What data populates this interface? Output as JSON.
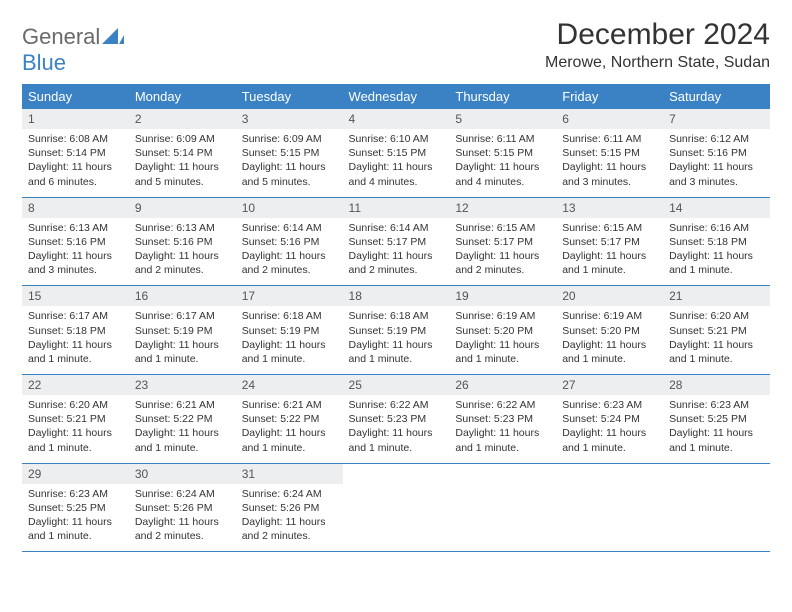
{
  "brand": {
    "part1": "General",
    "part2": "Blue"
  },
  "header": {
    "month_title": "December 2024",
    "location": "Merowe, Northern State, Sudan"
  },
  "colors": {
    "accent": "#3b82c4",
    "header_bg": "#3b82c4",
    "header_text": "#ffffff",
    "daynum_bg": "#eceeef",
    "text": "#333333",
    "logo_gray": "#6a6a6a"
  },
  "weekdays": [
    "Sunday",
    "Monday",
    "Tuesday",
    "Wednesday",
    "Thursday",
    "Friday",
    "Saturday"
  ],
  "days": [
    {
      "n": "1",
      "sunrise": "Sunrise: 6:08 AM",
      "sunset": "Sunset: 5:14 PM",
      "day1": "Daylight: 11 hours",
      "day2": "and 6 minutes."
    },
    {
      "n": "2",
      "sunrise": "Sunrise: 6:09 AM",
      "sunset": "Sunset: 5:14 PM",
      "day1": "Daylight: 11 hours",
      "day2": "and 5 minutes."
    },
    {
      "n": "3",
      "sunrise": "Sunrise: 6:09 AM",
      "sunset": "Sunset: 5:15 PM",
      "day1": "Daylight: 11 hours",
      "day2": "and 5 minutes."
    },
    {
      "n": "4",
      "sunrise": "Sunrise: 6:10 AM",
      "sunset": "Sunset: 5:15 PM",
      "day1": "Daylight: 11 hours",
      "day2": "and 4 minutes."
    },
    {
      "n": "5",
      "sunrise": "Sunrise: 6:11 AM",
      "sunset": "Sunset: 5:15 PM",
      "day1": "Daylight: 11 hours",
      "day2": "and 4 minutes."
    },
    {
      "n": "6",
      "sunrise": "Sunrise: 6:11 AM",
      "sunset": "Sunset: 5:15 PM",
      "day1": "Daylight: 11 hours",
      "day2": "and 3 minutes."
    },
    {
      "n": "7",
      "sunrise": "Sunrise: 6:12 AM",
      "sunset": "Sunset: 5:16 PM",
      "day1": "Daylight: 11 hours",
      "day2": "and 3 minutes."
    },
    {
      "n": "8",
      "sunrise": "Sunrise: 6:13 AM",
      "sunset": "Sunset: 5:16 PM",
      "day1": "Daylight: 11 hours",
      "day2": "and 3 minutes."
    },
    {
      "n": "9",
      "sunrise": "Sunrise: 6:13 AM",
      "sunset": "Sunset: 5:16 PM",
      "day1": "Daylight: 11 hours",
      "day2": "and 2 minutes."
    },
    {
      "n": "10",
      "sunrise": "Sunrise: 6:14 AM",
      "sunset": "Sunset: 5:16 PM",
      "day1": "Daylight: 11 hours",
      "day2": "and 2 minutes."
    },
    {
      "n": "11",
      "sunrise": "Sunrise: 6:14 AM",
      "sunset": "Sunset: 5:17 PM",
      "day1": "Daylight: 11 hours",
      "day2": "and 2 minutes."
    },
    {
      "n": "12",
      "sunrise": "Sunrise: 6:15 AM",
      "sunset": "Sunset: 5:17 PM",
      "day1": "Daylight: 11 hours",
      "day2": "and 2 minutes."
    },
    {
      "n": "13",
      "sunrise": "Sunrise: 6:15 AM",
      "sunset": "Sunset: 5:17 PM",
      "day1": "Daylight: 11 hours",
      "day2": "and 1 minute."
    },
    {
      "n": "14",
      "sunrise": "Sunrise: 6:16 AM",
      "sunset": "Sunset: 5:18 PM",
      "day1": "Daylight: 11 hours",
      "day2": "and 1 minute."
    },
    {
      "n": "15",
      "sunrise": "Sunrise: 6:17 AM",
      "sunset": "Sunset: 5:18 PM",
      "day1": "Daylight: 11 hours",
      "day2": "and 1 minute."
    },
    {
      "n": "16",
      "sunrise": "Sunrise: 6:17 AM",
      "sunset": "Sunset: 5:19 PM",
      "day1": "Daylight: 11 hours",
      "day2": "and 1 minute."
    },
    {
      "n": "17",
      "sunrise": "Sunrise: 6:18 AM",
      "sunset": "Sunset: 5:19 PM",
      "day1": "Daylight: 11 hours",
      "day2": "and 1 minute."
    },
    {
      "n": "18",
      "sunrise": "Sunrise: 6:18 AM",
      "sunset": "Sunset: 5:19 PM",
      "day1": "Daylight: 11 hours",
      "day2": "and 1 minute."
    },
    {
      "n": "19",
      "sunrise": "Sunrise: 6:19 AM",
      "sunset": "Sunset: 5:20 PM",
      "day1": "Daylight: 11 hours",
      "day2": "and 1 minute."
    },
    {
      "n": "20",
      "sunrise": "Sunrise: 6:19 AM",
      "sunset": "Sunset: 5:20 PM",
      "day1": "Daylight: 11 hours",
      "day2": "and 1 minute."
    },
    {
      "n": "21",
      "sunrise": "Sunrise: 6:20 AM",
      "sunset": "Sunset: 5:21 PM",
      "day1": "Daylight: 11 hours",
      "day2": "and 1 minute."
    },
    {
      "n": "22",
      "sunrise": "Sunrise: 6:20 AM",
      "sunset": "Sunset: 5:21 PM",
      "day1": "Daylight: 11 hours",
      "day2": "and 1 minute."
    },
    {
      "n": "23",
      "sunrise": "Sunrise: 6:21 AM",
      "sunset": "Sunset: 5:22 PM",
      "day1": "Daylight: 11 hours",
      "day2": "and 1 minute."
    },
    {
      "n": "24",
      "sunrise": "Sunrise: 6:21 AM",
      "sunset": "Sunset: 5:22 PM",
      "day1": "Daylight: 11 hours",
      "day2": "and 1 minute."
    },
    {
      "n": "25",
      "sunrise": "Sunrise: 6:22 AM",
      "sunset": "Sunset: 5:23 PM",
      "day1": "Daylight: 11 hours",
      "day2": "and 1 minute."
    },
    {
      "n": "26",
      "sunrise": "Sunrise: 6:22 AM",
      "sunset": "Sunset: 5:23 PM",
      "day1": "Daylight: 11 hours",
      "day2": "and 1 minute."
    },
    {
      "n": "27",
      "sunrise": "Sunrise: 6:23 AM",
      "sunset": "Sunset: 5:24 PM",
      "day1": "Daylight: 11 hours",
      "day2": "and 1 minute."
    },
    {
      "n": "28",
      "sunrise": "Sunrise: 6:23 AM",
      "sunset": "Sunset: 5:25 PM",
      "day1": "Daylight: 11 hours",
      "day2": "and 1 minute."
    },
    {
      "n": "29",
      "sunrise": "Sunrise: 6:23 AM",
      "sunset": "Sunset: 5:25 PM",
      "day1": "Daylight: 11 hours",
      "day2": "and 1 minute."
    },
    {
      "n": "30",
      "sunrise": "Sunrise: 6:24 AM",
      "sunset": "Sunset: 5:26 PM",
      "day1": "Daylight: 11 hours",
      "day2": "and 2 minutes."
    },
    {
      "n": "31",
      "sunrise": "Sunrise: 6:24 AM",
      "sunset": "Sunset: 5:26 PM",
      "day1": "Daylight: 11 hours",
      "day2": "and 2 minutes."
    }
  ]
}
